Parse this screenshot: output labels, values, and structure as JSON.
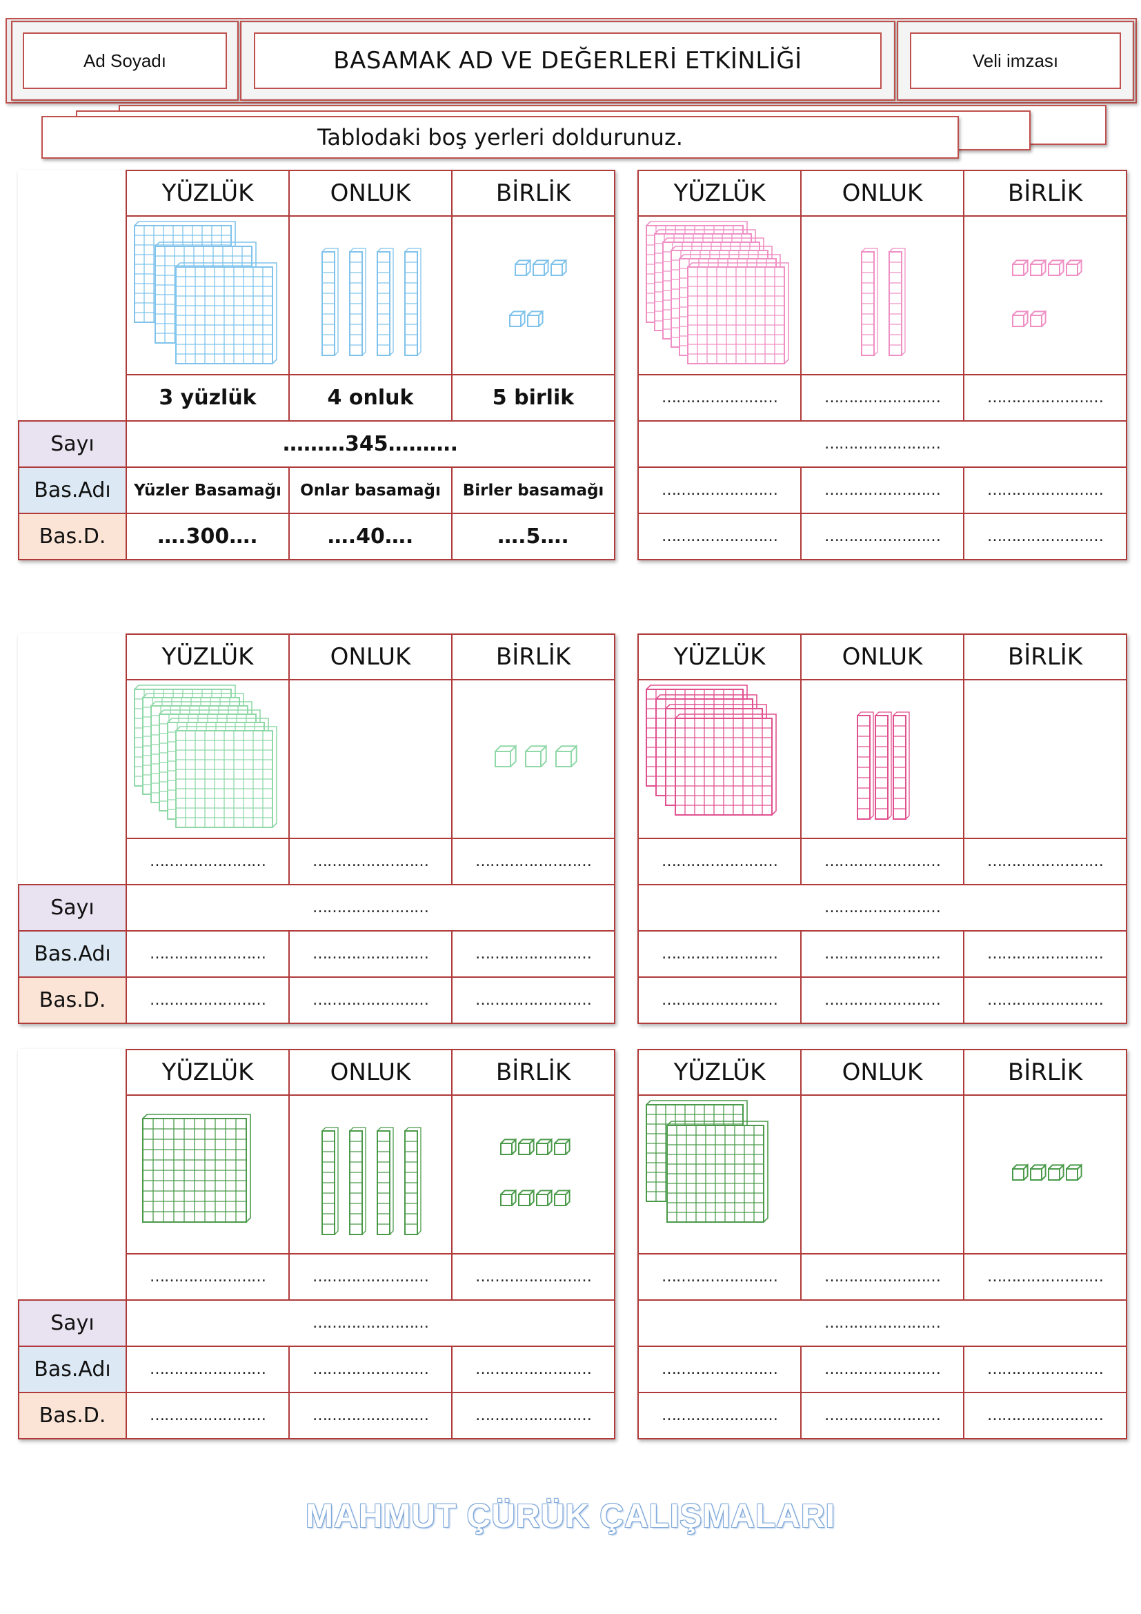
{
  "header": {
    "name_label": "Ad Soyadı",
    "title": "BASAMAK AD VE DEĞERLERİ ETKİNLİĞİ",
    "signature_label": "Veli imzası"
  },
  "instruction": "Tablodaki boş yerleri doldurunuz.",
  "column_headers": [
    "YÜZLÜK",
    "ONLUK",
    "BİRLİK"
  ],
  "row_labels": [
    "Sayı",
    "Bas.Adı",
    "Bas.D."
  ],
  "blank": "……………………",
  "tables": [
    {
      "id": 1,
      "color": "#7fc3ec",
      "hundreds": 3,
      "tens": 4,
      "ones": 5,
      "counts": [
        "3 yüzlük",
        "4 onluk",
        "5 birlik"
      ],
      "number": "………345……….",
      "place_names": [
        "Yüzler Basamağı",
        "Onlar basamağı",
        "Birler basamağı"
      ],
      "place_values": [
        "….300….",
        "….40….",
        "….5…."
      ]
    },
    {
      "id": 2,
      "color": "#ef8fc4",
      "hundreds": 6,
      "tens": 2,
      "ones": 6,
      "counts": [
        "……………………",
        "……………………",
        "……………………"
      ],
      "number": "……………………",
      "place_names": [
        "……………………",
        "……………………",
        "……………………"
      ],
      "place_values": [
        "……………………",
        "……………………",
        "……………………"
      ]
    },
    {
      "id": 3,
      "color": "#8fd8a8",
      "hundreds": 6,
      "tens": 0,
      "ones": 3,
      "counts": [
        "……………………",
        "……………………",
        "……………………"
      ],
      "number": "……………………",
      "place_names": [
        "……………………",
        "……………………",
        "……………………"
      ],
      "place_values": [
        "……………………",
        "……………………",
        "……………………"
      ]
    },
    {
      "id": 4,
      "color": "#e0508f",
      "hundreds": 4,
      "tens": 3,
      "ones": 0,
      "counts": [
        "……………………",
        "……………………",
        "……………………"
      ],
      "number": "……………………",
      "place_names": [
        "……………………",
        "……………………",
        "……………………"
      ],
      "place_values": [
        "……………………",
        "……………………",
        "……………………"
      ]
    },
    {
      "id": 5,
      "color": "#4a9a4a",
      "hundreds": 1,
      "tens": 4,
      "ones": 8,
      "counts": [
        "……………………",
        "……………………",
        "……………………"
      ],
      "number": "……………………",
      "place_names": [
        "……………………",
        "……………………",
        "……………………"
      ],
      "place_values": [
        "……………………",
        "……………………",
        "……………………"
      ]
    },
    {
      "id": 6,
      "color": "#4a9a4a",
      "hundreds": 2,
      "tens": 0,
      "ones": 4,
      "counts": [
        "……………………",
        "……………………",
        "……………………"
      ],
      "number": "……………………",
      "place_names": [
        "……………………",
        "……………………",
        "……………………"
      ],
      "place_values": [
        "……………………",
        "……………………",
        "……………………"
      ]
    }
  ],
  "footer": "MAHMUT ÇÜRÜK ÇALIŞMALARI"
}
